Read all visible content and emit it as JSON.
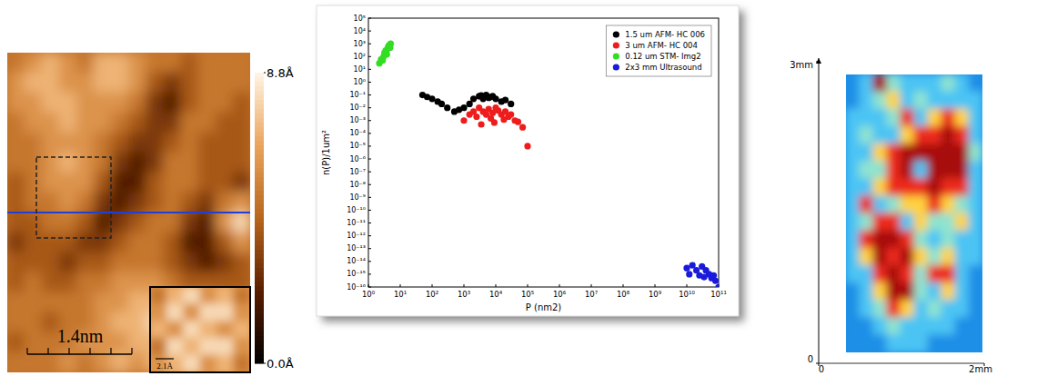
{
  "chart_data": [
    {
      "type": "image",
      "cells": [
        [
          5,
          6,
          7,
          6,
          5,
          7,
          7,
          6,
          5,
          5,
          4,
          5,
          5,
          5
        ],
        [
          6,
          7,
          7,
          6,
          6,
          7,
          7,
          6,
          4,
          3,
          4,
          5,
          5,
          5
        ],
        [
          6,
          6,
          7,
          7,
          6,
          6,
          6,
          5,
          3,
          2,
          4,
          5,
          5,
          4
        ],
        [
          5,
          6,
          6,
          7,
          6,
          6,
          5,
          4,
          3,
          3,
          5,
          5,
          4,
          4
        ],
        [
          5,
          5,
          6,
          6,
          6,
          5,
          4,
          3,
          3,
          4,
          5,
          4,
          4,
          4
        ],
        [
          5,
          5,
          6,
          7,
          6,
          5,
          3,
          2,
          3,
          5,
          5,
          4,
          4,
          4
        ],
        [
          4,
          5,
          6,
          6,
          6,
          4,
          2,
          2,
          4,
          5,
          5,
          4,
          4,
          3
        ],
        [
          4,
          5,
          5,
          6,
          5,
          3,
          2,
          3,
          4,
          5,
          4,
          3,
          5,
          6
        ],
        [
          4,
          4,
          5,
          5,
          4,
          2,
          3,
          4,
          5,
          5,
          3,
          2,
          6,
          8
        ],
        [
          3,
          4,
          4,
          4,
          3,
          3,
          4,
          5,
          5,
          4,
          2,
          2,
          4,
          6
        ],
        [
          4,
          4,
          4,
          3,
          4,
          4,
          5,
          5,
          5,
          4,
          3,
          2,
          3,
          4
        ],
        [
          4,
          5,
          4,
          4,
          5,
          5,
          6,
          6,
          6,
          5,
          4,
          4,
          4,
          4
        ],
        [
          5,
          5,
          5,
          5,
          5,
          6,
          6,
          7,
          7,
          6,
          6,
          6,
          5,
          5
        ],
        [
          5,
          5,
          4,
          5,
          5,
          6,
          7,
          7,
          8,
          7,
          7,
          6,
          6,
          5
        ],
        [
          4,
          5,
          5,
          5,
          6,
          6,
          6,
          7,
          7,
          8,
          7,
          7,
          6,
          6
        ],
        [
          5,
          5,
          5,
          6,
          5,
          6,
          7,
          6,
          7,
          7,
          8,
          7,
          6,
          6
        ]
      ],
      "colorbar": {
        "range": [
          0,
          8.8
        ],
        "ticks": [
          {
            "value": 8.8,
            "label": "8.8Å"
          },
          {
            "value": 0,
            "label": "0.0Å"
          }
        ]
      },
      "annotations": [
        "1.4nm"
      ],
      "inset": {
        "cells": [
          [
            5,
            7,
            8,
            6,
            7,
            5
          ],
          [
            6,
            8,
            6,
            8,
            8,
            6
          ],
          [
            7,
            6,
            8,
            7,
            6,
            7
          ],
          [
            5,
            8,
            7,
            8,
            8,
            6
          ],
          [
            6,
            7,
            8,
            6,
            7,
            5
          ]
        ],
        "annotations": [
          "2.1Å"
        ]
      }
    },
    {
      "type": "scatter",
      "log": true,
      "xlabel": "P (nm2)",
      "ylabel": "n(P)/1um²",
      "xlim": [
        1,
        100000000000.0
      ],
      "ylim": [
        1e-16,
        100000.0
      ],
      "xticks": [
        {
          "value": 1,
          "label": "10⁰"
        },
        {
          "value": 10,
          "label": "10¹"
        },
        {
          "value": 100,
          "label": "10²"
        },
        {
          "value": 1000,
          "label": "10³"
        },
        {
          "value": 10000,
          "label": "10⁴"
        },
        {
          "value": 100000,
          "label": "10⁵"
        },
        {
          "value": 1000000,
          "label": "10⁶"
        },
        {
          "value": 10000000,
          "label": "10⁷"
        },
        {
          "value": 100000000,
          "label": "10⁸"
        },
        {
          "value": 1000000000,
          "label": "10⁹"
        },
        {
          "value": 10000000000,
          "label": "10¹⁰"
        },
        {
          "value": 100000000000,
          "label": "10¹¹"
        }
      ],
      "yticks": [
        {
          "value": 100000.0,
          "label": "10⁵"
        },
        {
          "value": 10000.0,
          "label": "10⁴"
        },
        {
          "value": 1000.0,
          "label": "10³"
        },
        {
          "value": 100.0,
          "label": "10²"
        },
        {
          "value": 10.0,
          "label": "10¹"
        },
        {
          "value": 1,
          "label": "10⁰"
        },
        {
          "value": 0.1,
          "label": "10⁻¹"
        },
        {
          "value": 0.01,
          "label": "10⁻²"
        },
        {
          "value": 0.001,
          "label": "10⁻³"
        },
        {
          "value": 0.0001,
          "label": "10⁻⁴"
        },
        {
          "value": 1e-05,
          "label": "10⁻⁵"
        },
        {
          "value": 1e-06,
          "label": "10⁻⁶"
        },
        {
          "value": 1e-07,
          "label": "10⁻⁷"
        },
        {
          "value": 1e-08,
          "label": "10⁻⁸"
        },
        {
          "value": 1e-09,
          "label": "10⁻⁹"
        },
        {
          "value": 1e-10,
          "label": "10⁻¹⁰"
        },
        {
          "value": 1e-11,
          "label": "10⁻¹¹"
        },
        {
          "value": 1e-12,
          "label": "10⁻¹²"
        },
        {
          "value": 1e-13,
          "label": "10⁻¹³"
        },
        {
          "value": 1e-14,
          "label": "10⁻¹⁴"
        },
        {
          "value": 1e-15,
          "label": "10⁻¹⁵"
        },
        {
          "value": 1e-16,
          "label": "10⁻¹⁶"
        }
      ],
      "legend": "top-right",
      "marker": "circle",
      "series": [
        {
          "name": "1.5 um AFM- HC 006",
          "color": "#000000",
          "x": [
            50,
            70,
            100,
            150,
            200,
            300,
            500,
            700,
            1000,
            1500,
            2000,
            3000,
            4000,
            5000,
            7000,
            10000,
            15000,
            20000,
            30000,
            3500,
            6000,
            8000
          ],
          "values": [
            0.1,
            0.07,
            0.05,
            0.03,
            0.02,
            0.01,
            0.005,
            0.007,
            0.01,
            0.02,
            0.05,
            0.08,
            0.05,
            0.1,
            0.07,
            0.05,
            0.03,
            0.04,
            0.02,
            0.09,
            0.06,
            0.08
          ]
        },
        {
          "name": "3 um AFM- HC 004",
          "color": "#ee1c1c",
          "x": [
            1000,
            1500,
            2000,
            2500,
            3000,
            4000,
            5000,
            6000,
            8000,
            10000,
            12000,
            15000,
            20000,
            25000,
            30000,
            40000,
            50000,
            70000,
            100000,
            3500,
            7000,
            9000,
            18000
          ],
          "values": [
            0.001,
            0.003,
            0.005,
            0.002,
            0.01,
            0.005,
            0.003,
            0.008,
            0.004,
            0.01,
            0.006,
            0.003,
            0.005,
            0.002,
            0.003,
            0.001,
            0.0008,
            0.0003,
            1e-05,
            0.0005,
            0.0015,
            0.0007,
            0.0012
          ]
        },
        {
          "name": "0.12 um STM- Img2",
          "color": "#33dd22",
          "x": [
            2.2,
            2.5,
            3,
            3.2,
            3.5,
            4,
            4.2,
            4.5,
            5,
            3.8,
            2.8,
            4.8
          ],
          "values": [
            30,
            60,
            100,
            200,
            300,
            400,
            600,
            800,
            1000,
            150,
            50,
            500
          ]
        },
        {
          "name": "2x3 mm Ultrasound",
          "color": "#1a1adc",
          "x": [
            10000000000,
            12000000000,
            15000000000,
            20000000000,
            25000000000,
            30000000000,
            40000000000,
            50000000000,
            60000000000,
            80000000000,
            100000000000,
            35000000000,
            70000000000
          ],
          "values": [
            3e-15,
            1e-15,
            5e-15,
            2e-15,
            8e-16,
            4e-15,
            2e-15,
            1e-15,
            5e-16,
            3e-16,
            1e-16,
            6e-16,
            8e-16
          ]
        }
      ]
    },
    {
      "type": "heatmap",
      "cells": [
        [
          0,
          1,
          5,
          2,
          1,
          1,
          1,
          2,
          1,
          0
        ],
        [
          0,
          1,
          2,
          3,
          1,
          2,
          1,
          1,
          1,
          1
        ],
        [
          1,
          1,
          1,
          2,
          4,
          1,
          3,
          4,
          3,
          1
        ],
        [
          1,
          2,
          1,
          1,
          3,
          4,
          4,
          5,
          4,
          1
        ],
        [
          1,
          1,
          3,
          4,
          5,
          5,
          5,
          5,
          5,
          2
        ],
        [
          1,
          2,
          2,
          4,
          5,
          1,
          5,
          5,
          5,
          1
        ],
        [
          1,
          1,
          3,
          4,
          4,
          4,
          5,
          4,
          4,
          1
        ],
        [
          1,
          4,
          1,
          2,
          3,
          3,
          4,
          3,
          2,
          1
        ],
        [
          1,
          2,
          4,
          4,
          1,
          3,
          2,
          2,
          3,
          1
        ],
        [
          1,
          4,
          5,
          5,
          4,
          2,
          1,
          2,
          1,
          1
        ],
        [
          1,
          3,
          5,
          4,
          5,
          3,
          2,
          3,
          1,
          1
        ],
        [
          1,
          1,
          4,
          5,
          4,
          2,
          4,
          4,
          1,
          0
        ],
        [
          0,
          1,
          3,
          5,
          5,
          2,
          1,
          3,
          1,
          0
        ],
        [
          0,
          1,
          2,
          4,
          3,
          1,
          2,
          1,
          1,
          0
        ],
        [
          0,
          0,
          1,
          2,
          1,
          1,
          1,
          1,
          0,
          0
        ],
        [
          0,
          0,
          0,
          1,
          1,
          1,
          0,
          0,
          0,
          0
        ]
      ],
      "zlim": [
        0,
        5
      ],
      "xlim": [
        0,
        2
      ],
      "ylim": [
        0,
        3
      ],
      "xticks": [
        0,
        {
          "value": 2,
          "label": "2mm"
        }
      ],
      "yticks": [
        0,
        {
          "value": 3,
          "label": "3mm"
        }
      ]
    }
  ]
}
